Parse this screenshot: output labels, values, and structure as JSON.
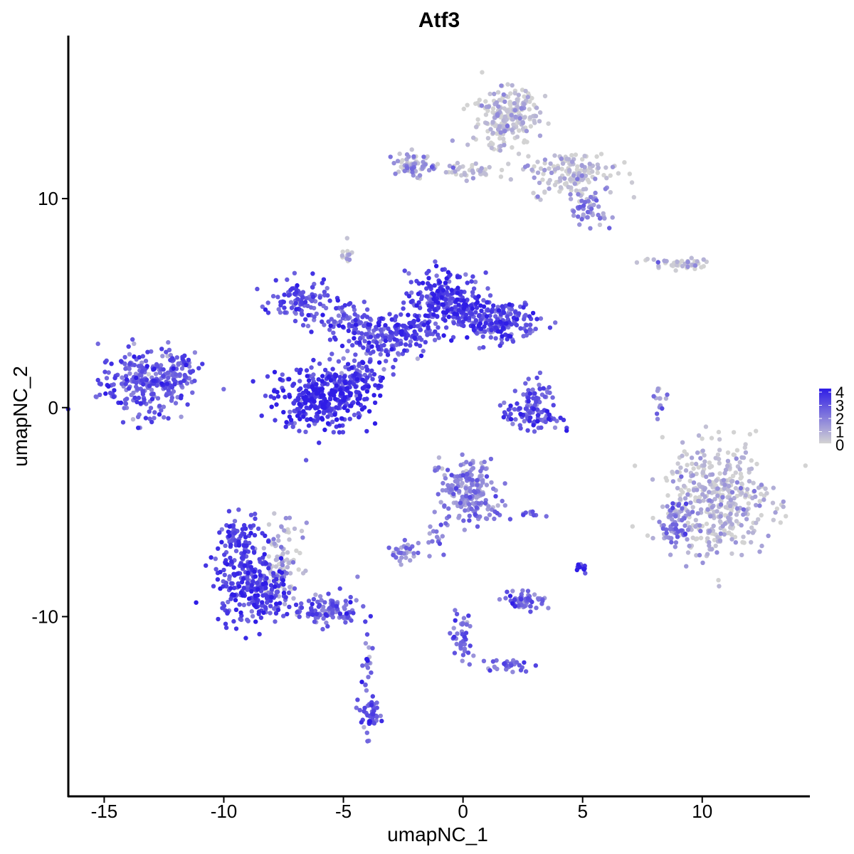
{
  "chart_data": {
    "type": "scatter",
    "title": "Atf3",
    "xlabel": "umapNC_1",
    "ylabel": "umapNC_2",
    "xlim": [
      -16.5,
      14.5
    ],
    "ylim": [
      -18.6,
      17.8
    ],
    "x_ticks": [
      -15,
      -10,
      -5,
      0,
      5,
      10
    ],
    "x_tick_labels": [
      "-15",
      "-10",
      "-5",
      "0",
      "5",
      "10"
    ],
    "y_ticks": [
      -10,
      0,
      10
    ],
    "y_tick_labels": [
      "-10",
      "0",
      "10"
    ],
    "grid": false,
    "color_scale": {
      "low": "#d3d3d3",
      "high": "#2f1de6",
      "min": 0,
      "max": 4,
      "ticks": [
        0,
        1,
        2,
        3,
        4
      ],
      "tick_labels": [
        "0",
        "1",
        "2",
        "3",
        "4"
      ],
      "legend_position": "right"
    },
    "clusters": [
      {
        "cx": -13.2,
        "cy": 1.2,
        "sx": 1.3,
        "sy": 1.1,
        "n": 260,
        "expr": 2.6
      },
      {
        "cx": -12.0,
        "cy": 1.8,
        "sx": 0.6,
        "sy": 0.5,
        "n": 40,
        "expr": 2.4
      },
      {
        "cx": -6.0,
        "cy": 0.5,
        "sx": 1.3,
        "sy": 1.0,
        "n": 330,
        "expr": 3.3
      },
      {
        "cx": -4.3,
        "cy": 1.3,
        "sx": 0.7,
        "sy": 0.7,
        "n": 90,
        "expr": 3.1
      },
      {
        "cx": -3.7,
        "cy": 3.2,
        "sx": 1.0,
        "sy": 0.9,
        "n": 130,
        "expr": 2.9
      },
      {
        "cx": -6.8,
        "cy": 5.1,
        "sx": 0.8,
        "sy": 0.6,
        "n": 100,
        "expr": 2.8
      },
      {
        "cx": -5.0,
        "cy": 4.2,
        "sx": 0.7,
        "sy": 0.5,
        "n": 60,
        "expr": 2.5
      },
      {
        "cx": -0.7,
        "cy": 5.1,
        "sx": 1.1,
        "sy": 0.9,
        "n": 240,
        "expr": 3.2
      },
      {
        "cx": 1.4,
        "cy": 4.1,
        "sx": 1.2,
        "sy": 0.6,
        "n": 190,
        "expr": 2.9
      },
      {
        "cx": -2.2,
        "cy": 3.5,
        "sx": 0.8,
        "sy": 0.6,
        "n": 80,
        "expr": 2.8
      },
      {
        "cx": -4.9,
        "cy": 7.3,
        "sx": 0.2,
        "sy": 0.3,
        "n": 12,
        "expr": 0.3
      },
      {
        "cx": 2.9,
        "cy": -0.4,
        "sx": 0.8,
        "sy": 0.45,
        "n": 90,
        "expr": 2.8
      },
      {
        "cx": 3.1,
        "cy": 0.7,
        "sx": 0.4,
        "sy": 0.5,
        "n": 40,
        "expr": 2.6
      },
      {
        "cx": -8.8,
        "cy": -8.6,
        "sx": 1.1,
        "sy": 1.1,
        "n": 260,
        "expr": 3.1
      },
      {
        "cx": -9.3,
        "cy": -6.4,
        "sx": 0.6,
        "sy": 0.9,
        "n": 90,
        "expr": 3.0
      },
      {
        "cx": -7.6,
        "cy": -7.4,
        "sx": 0.6,
        "sy": 1.2,
        "n": 90,
        "expr": 0.6
      },
      {
        "cx": -5.7,
        "cy": -9.7,
        "sx": 0.9,
        "sy": 0.5,
        "n": 110,
        "expr": 2.4
      },
      {
        "cx": -3.9,
        "cy": -14.7,
        "sx": 0.3,
        "sy": 0.6,
        "n": 45,
        "expr": 2.7
      },
      {
        "cx": -4.0,
        "cy": -12.2,
        "sx": 0.15,
        "sy": 1.2,
        "n": 20,
        "expr": 2.2
      },
      {
        "cx": 0.1,
        "cy": -3.6,
        "sx": 0.7,
        "sy": 0.7,
        "n": 130,
        "expr": 1.5
      },
      {
        "cx": 0.6,
        "cy": -4.7,
        "sx": 0.8,
        "sy": 0.6,
        "n": 70,
        "expr": 1.8
      },
      {
        "cx": -1.0,
        "cy": -5.7,
        "sx": 0.4,
        "sy": 0.8,
        "n": 20,
        "expr": 2.0
      },
      {
        "cx": -2.4,
        "cy": -6.9,
        "sx": 0.4,
        "sy": 0.3,
        "n": 30,
        "expr": 1.5
      },
      {
        "cx": 2.5,
        "cy": -9.2,
        "sx": 0.6,
        "sy": 0.3,
        "n": 60,
        "expr": 2.4
      },
      {
        "cx": 0.0,
        "cy": -11.0,
        "sx": 0.3,
        "sy": 0.9,
        "n": 40,
        "expr": 2.2
      },
      {
        "cx": 1.8,
        "cy": -12.3,
        "sx": 0.7,
        "sy": 0.2,
        "n": 30,
        "expr": 2.2
      },
      {
        "cx": 5.0,
        "cy": -7.6,
        "sx": 0.15,
        "sy": 0.2,
        "n": 12,
        "expr": 3.3
      },
      {
        "cx": 2.8,
        "cy": -5.1,
        "sx": 0.3,
        "sy": 0.1,
        "n": 10,
        "expr": 2.4
      },
      {
        "cx": 1.8,
        "cy": 13.9,
        "sx": 0.9,
        "sy": 1.0,
        "n": 230,
        "expr": 0.2
      },
      {
        "cx": 4.6,
        "cy": 11.2,
        "sx": 1.2,
        "sy": 0.7,
        "n": 160,
        "expr": 0.3
      },
      {
        "cx": 5.3,
        "cy": 9.5,
        "sx": 0.6,
        "sy": 0.5,
        "n": 50,
        "expr": 1.5
      },
      {
        "cx": -2.1,
        "cy": 11.6,
        "sx": 0.7,
        "sy": 0.4,
        "n": 70,
        "expr": 0.8
      },
      {
        "cx": 0.3,
        "cy": 11.3,
        "sx": 1.0,
        "sy": 0.2,
        "n": 40,
        "expr": 0.2
      },
      {
        "cx": 9.0,
        "cy": 6.9,
        "sx": 1.0,
        "sy": 0.2,
        "n": 45,
        "expr": 0.2
      },
      {
        "cx": 10.6,
        "cy": -4.4,
        "sx": 1.5,
        "sy": 1.8,
        "n": 420,
        "expr": 0.4
      },
      {
        "cx": 8.8,
        "cy": -5.4,
        "sx": 0.5,
        "sy": 0.8,
        "n": 60,
        "expr": 1.9
      },
      {
        "cx": 8.2,
        "cy": 0.3,
        "sx": 0.15,
        "sy": 0.7,
        "n": 15,
        "expr": 1.2
      }
    ]
  }
}
